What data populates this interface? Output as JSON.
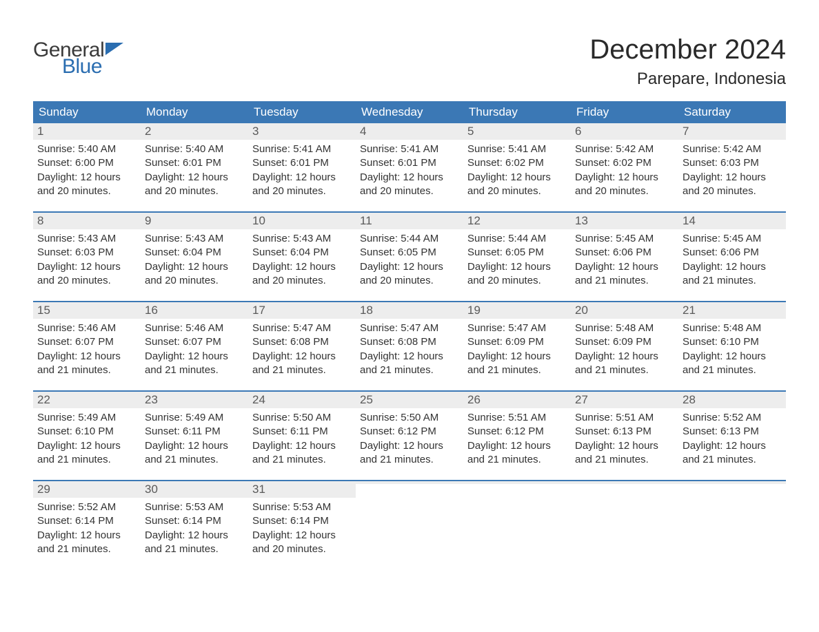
{
  "logo": {
    "word1": "General",
    "word2": "Blue",
    "word1_color": "#3a3a3a",
    "word2_color": "#2a6db0",
    "flag_color": "#2a6db0"
  },
  "header": {
    "month_title": "December 2024",
    "location": "Parepare, Indonesia"
  },
  "colors": {
    "header_bg": "#3b78b5",
    "header_text": "#ffffff",
    "daynum_bg": "#ededed",
    "week_border": "#3b78b5",
    "body_text": "#333333",
    "background": "#ffffff"
  },
  "typography": {
    "month_title_fontsize": 40,
    "location_fontsize": 24,
    "weekday_fontsize": 17,
    "daynum_fontsize": 17,
    "body_fontsize": 15,
    "logo_fontsize": 30
  },
  "weekdays": [
    "Sunday",
    "Monday",
    "Tuesday",
    "Wednesday",
    "Thursday",
    "Friday",
    "Saturday"
  ],
  "weeks": [
    [
      {
        "n": "1",
        "sunrise": "5:40 AM",
        "sunset": "6:00 PM",
        "dl": "12 hours and 20 minutes."
      },
      {
        "n": "2",
        "sunrise": "5:40 AM",
        "sunset": "6:01 PM",
        "dl": "12 hours and 20 minutes."
      },
      {
        "n": "3",
        "sunrise": "5:41 AM",
        "sunset": "6:01 PM",
        "dl": "12 hours and 20 minutes."
      },
      {
        "n": "4",
        "sunrise": "5:41 AM",
        "sunset": "6:01 PM",
        "dl": "12 hours and 20 minutes."
      },
      {
        "n": "5",
        "sunrise": "5:41 AM",
        "sunset": "6:02 PM",
        "dl": "12 hours and 20 minutes."
      },
      {
        "n": "6",
        "sunrise": "5:42 AM",
        "sunset": "6:02 PM",
        "dl": "12 hours and 20 minutes."
      },
      {
        "n": "7",
        "sunrise": "5:42 AM",
        "sunset": "6:03 PM",
        "dl": "12 hours and 20 minutes."
      }
    ],
    [
      {
        "n": "8",
        "sunrise": "5:43 AM",
        "sunset": "6:03 PM",
        "dl": "12 hours and 20 minutes."
      },
      {
        "n": "9",
        "sunrise": "5:43 AM",
        "sunset": "6:04 PM",
        "dl": "12 hours and 20 minutes."
      },
      {
        "n": "10",
        "sunrise": "5:43 AM",
        "sunset": "6:04 PM",
        "dl": "12 hours and 20 minutes."
      },
      {
        "n": "11",
        "sunrise": "5:44 AM",
        "sunset": "6:05 PM",
        "dl": "12 hours and 20 minutes."
      },
      {
        "n": "12",
        "sunrise": "5:44 AM",
        "sunset": "6:05 PM",
        "dl": "12 hours and 20 minutes."
      },
      {
        "n": "13",
        "sunrise": "5:45 AM",
        "sunset": "6:06 PM",
        "dl": "12 hours and 21 minutes."
      },
      {
        "n": "14",
        "sunrise": "5:45 AM",
        "sunset": "6:06 PM",
        "dl": "12 hours and 21 minutes."
      }
    ],
    [
      {
        "n": "15",
        "sunrise": "5:46 AM",
        "sunset": "6:07 PM",
        "dl": "12 hours and 21 minutes."
      },
      {
        "n": "16",
        "sunrise": "5:46 AM",
        "sunset": "6:07 PM",
        "dl": "12 hours and 21 minutes."
      },
      {
        "n": "17",
        "sunrise": "5:47 AM",
        "sunset": "6:08 PM",
        "dl": "12 hours and 21 minutes."
      },
      {
        "n": "18",
        "sunrise": "5:47 AM",
        "sunset": "6:08 PM",
        "dl": "12 hours and 21 minutes."
      },
      {
        "n": "19",
        "sunrise": "5:47 AM",
        "sunset": "6:09 PM",
        "dl": "12 hours and 21 minutes."
      },
      {
        "n": "20",
        "sunrise": "5:48 AM",
        "sunset": "6:09 PM",
        "dl": "12 hours and 21 minutes."
      },
      {
        "n": "21",
        "sunrise": "5:48 AM",
        "sunset": "6:10 PM",
        "dl": "12 hours and 21 minutes."
      }
    ],
    [
      {
        "n": "22",
        "sunrise": "5:49 AM",
        "sunset": "6:10 PM",
        "dl": "12 hours and 21 minutes."
      },
      {
        "n": "23",
        "sunrise": "5:49 AM",
        "sunset": "6:11 PM",
        "dl": "12 hours and 21 minutes."
      },
      {
        "n": "24",
        "sunrise": "5:50 AM",
        "sunset": "6:11 PM",
        "dl": "12 hours and 21 minutes."
      },
      {
        "n": "25",
        "sunrise": "5:50 AM",
        "sunset": "6:12 PM",
        "dl": "12 hours and 21 minutes."
      },
      {
        "n": "26",
        "sunrise": "5:51 AM",
        "sunset": "6:12 PM",
        "dl": "12 hours and 21 minutes."
      },
      {
        "n": "27",
        "sunrise": "5:51 AM",
        "sunset": "6:13 PM",
        "dl": "12 hours and 21 minutes."
      },
      {
        "n": "28",
        "sunrise": "5:52 AM",
        "sunset": "6:13 PM",
        "dl": "12 hours and 21 minutes."
      }
    ],
    [
      {
        "n": "29",
        "sunrise": "5:52 AM",
        "sunset": "6:14 PM",
        "dl": "12 hours and 21 minutes."
      },
      {
        "n": "30",
        "sunrise": "5:53 AM",
        "sunset": "6:14 PM",
        "dl": "12 hours and 21 minutes."
      },
      {
        "n": "31",
        "sunrise": "5:53 AM",
        "sunset": "6:14 PM",
        "dl": "12 hours and 20 minutes."
      },
      null,
      null,
      null,
      null
    ]
  ],
  "labels": {
    "sunrise_prefix": "Sunrise: ",
    "sunset_prefix": "Sunset: ",
    "daylight_prefix": "Daylight: "
  }
}
